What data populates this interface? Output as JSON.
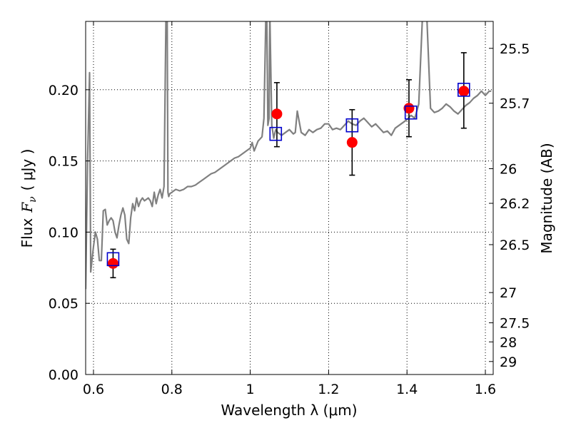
{
  "chart_data": {
    "type": "scatter",
    "xlabel": "Wavelength  λ (μm)",
    "ylabel_left_prefix": "Flux",
    "ylabel_left_symbol": "F",
    "ylabel_left_subscript": "ν",
    "ylabel_left_units": "( μJy )",
    "ylabel_right": "Magnitude (AB)",
    "xlim": [
      0.58,
      1.62
    ],
    "ylim": [
      0.0,
      0.248
    ],
    "grid": true,
    "x_ticks": [
      {
        "value": 0.6,
        "label": "0.6"
      },
      {
        "value": 0.8,
        "label": "0.8"
      },
      {
        "value": 1.0,
        "label": "1"
      },
      {
        "value": 1.2,
        "label": "1.2"
      },
      {
        "value": 1.4,
        "label": "1.4"
      },
      {
        "value": 1.6,
        "label": "1.6"
      }
    ],
    "y_ticks": [
      {
        "value": 0.0,
        "label": "0.00"
      },
      {
        "value": 0.05,
        "label": "0.05"
      },
      {
        "value": 0.1,
        "label": "0.10"
      },
      {
        "value": 0.15,
        "label": "0.15"
      },
      {
        "value": 0.2,
        "label": "0.20"
      }
    ],
    "magnitude_ticks": [
      {
        "value": 25.5,
        "label": "25.5"
      },
      {
        "value": 25.7,
        "label": "25.7"
      },
      {
        "value": 26.0,
        "label": "26"
      },
      {
        "value": 26.2,
        "label": "26.2"
      },
      {
        "value": 26.5,
        "label": "26.5"
      },
      {
        "value": 27.0,
        "label": "27"
      },
      {
        "value": 27.5,
        "label": "27.5"
      },
      {
        "value": 28.0,
        "label": "28"
      },
      {
        "value": 29.0,
        "label": "29"
      }
    ],
    "colors": {
      "spectrum": "#808080",
      "model_box": "#0000cc",
      "observed": "#ff0000",
      "errorbar": "#000000",
      "grid": "#000000"
    },
    "series": [
      {
        "name": "model spectrum",
        "type": "line",
        "x": [
          0.58,
          0.585,
          0.59,
          0.593,
          0.596,
          0.6,
          0.605,
          0.61,
          0.615,
          0.62,
          0.625,
          0.63,
          0.635,
          0.64,
          0.645,
          0.65,
          0.655,
          0.66,
          0.665,
          0.67,
          0.675,
          0.68,
          0.685,
          0.69,
          0.695,
          0.7,
          0.705,
          0.71,
          0.715,
          0.72,
          0.725,
          0.73,
          0.735,
          0.74,
          0.745,
          0.75,
          0.755,
          0.76,
          0.765,
          0.77,
          0.775,
          0.78,
          0.785,
          0.788,
          0.79,
          0.792,
          0.795,
          0.8,
          0.81,
          0.82,
          0.83,
          0.84,
          0.85,
          0.86,
          0.87,
          0.88,
          0.89,
          0.9,
          0.91,
          0.92,
          0.93,
          0.94,
          0.95,
          0.96,
          0.97,
          0.98,
          0.99,
          1.0,
          1.005,
          1.01,
          1.02,
          1.03,
          1.035,
          1.04,
          1.042,
          1.045,
          1.048,
          1.05,
          1.055,
          1.06,
          1.065,
          1.07,
          1.08,
          1.09,
          1.1,
          1.11,
          1.115,
          1.12,
          1.13,
          1.14,
          1.15,
          1.16,
          1.17,
          1.18,
          1.19,
          1.2,
          1.21,
          1.22,
          1.23,
          1.24,
          1.25,
          1.26,
          1.27,
          1.28,
          1.29,
          1.3,
          1.31,
          1.32,
          1.33,
          1.34,
          1.35,
          1.36,
          1.37,
          1.38,
          1.39,
          1.4,
          1.41,
          1.42,
          1.43,
          1.44,
          1.45,
          1.46,
          1.47,
          1.48,
          1.49,
          1.5,
          1.51,
          1.52,
          1.53,
          1.54,
          1.55,
          1.56,
          1.57,
          1.58,
          1.59,
          1.6,
          1.61,
          1.615
        ],
        "values": [
          0.06,
          0.15,
          0.212,
          0.072,
          0.08,
          0.09,
          0.1,
          0.095,
          0.08,
          0.08,
          0.115,
          0.116,
          0.105,
          0.108,
          0.11,
          0.108,
          0.1,
          0.096,
          0.105,
          0.112,
          0.117,
          0.112,
          0.095,
          0.092,
          0.11,
          0.12,
          0.115,
          0.124,
          0.118,
          0.122,
          0.124,
          0.122,
          0.123,
          0.124,
          0.122,
          0.118,
          0.128,
          0.12,
          0.126,
          0.13,
          0.124,
          0.132,
          0.255,
          0.255,
          0.128,
          0.125,
          0.127,
          0.128,
          0.13,
          0.129,
          0.13,
          0.132,
          0.132,
          0.133,
          0.135,
          0.137,
          0.139,
          0.141,
          0.142,
          0.144,
          0.146,
          0.148,
          0.15,
          0.152,
          0.153,
          0.155,
          0.157,
          0.159,
          0.163,
          0.157,
          0.164,
          0.167,
          0.18,
          0.255,
          0.255,
          0.175,
          0.18,
          0.255,
          0.175,
          0.166,
          0.172,
          0.17,
          0.168,
          0.17,
          0.172,
          0.169,
          0.17,
          0.185,
          0.17,
          0.168,
          0.172,
          0.17,
          0.172,
          0.173,
          0.176,
          0.176,
          0.172,
          0.173,
          0.172,
          0.175,
          0.178,
          0.176,
          0.175,
          0.178,
          0.18,
          0.177,
          0.174,
          0.176,
          0.173,
          0.17,
          0.171,
          0.168,
          0.173,
          0.175,
          0.177,
          0.179,
          0.182,
          0.18,
          0.19,
          0.255,
          0.255,
          0.187,
          0.184,
          0.185,
          0.187,
          0.19,
          0.188,
          0.185,
          0.183,
          0.186,
          0.189,
          0.191,
          0.194,
          0.196,
          0.199,
          0.196,
          0.199,
          0.199
        ]
      },
      {
        "name": "model photometry",
        "type": "scatter",
        "marker": "open-square",
        "x": [
          0.65,
          1.065,
          1.26,
          1.41,
          1.545
        ],
        "values": [
          0.081,
          0.169,
          0.175,
          0.184,
          0.2
        ]
      },
      {
        "name": "observed photometry",
        "type": "scatter",
        "marker": "filled-circle",
        "x": [
          0.65,
          1.068,
          1.26,
          1.405,
          1.545
        ],
        "values": [
          0.078,
          0.183,
          0.163,
          0.187,
          0.199
        ],
        "err_low": [
          0.01,
          0.023,
          0.023,
          0.02,
          0.026
        ],
        "err_high": [
          0.01,
          0.022,
          0.023,
          0.02,
          0.027
        ]
      }
    ]
  }
}
